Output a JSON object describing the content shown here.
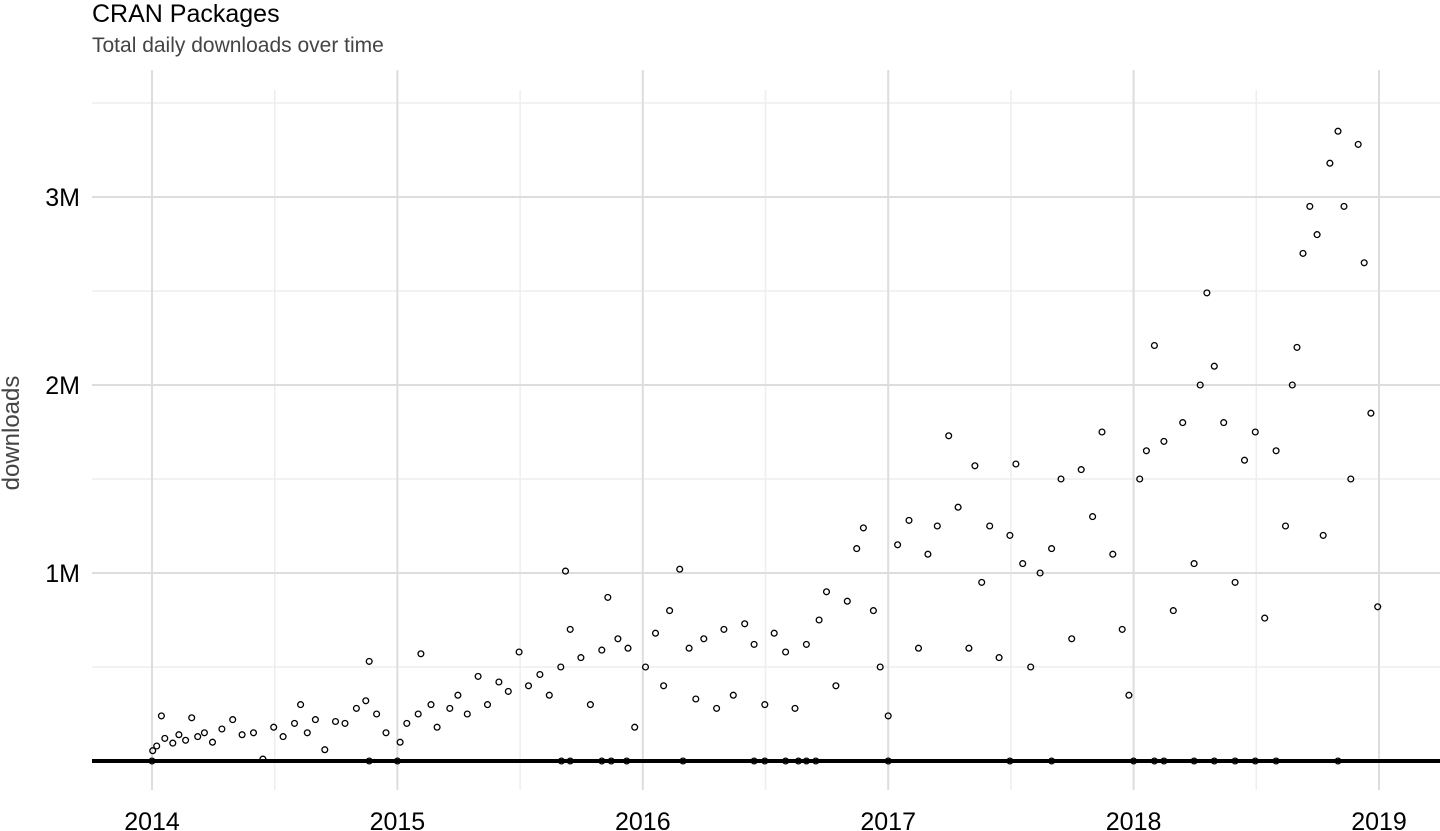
{
  "chart_data": {
    "type": "scatter",
    "title": "CRAN Packages",
    "subtitle": "Total daily downloads over time",
    "xlabel": "",
    "ylabel": "downloads",
    "x_ticks": [
      "2014",
      "2015",
      "2016",
      "2017",
      "2018",
      "2019"
    ],
    "y_ticks": [
      "1M",
      "2M",
      "3M"
    ],
    "xlim": [
      "2013-09-15",
      "2019-04-01"
    ],
    "ylim": [
      -150000,
      3500000
    ],
    "grid": true,
    "point_style": "hollow-circle",
    "colors": {
      "point": "#000000",
      "grid_major": "#dddddd",
      "grid_minor": "#eeeeee",
      "baseline": "#000000"
    },
    "zero_days": [
      "2014-01-01",
      "2014-11-20",
      "2015-01-01",
      "2015-09-02",
      "2015-09-15",
      "2015-11-01",
      "2015-11-15",
      "2015-12-08",
      "2016-03-01",
      "2016-06-15",
      "2016-07-01",
      "2016-08-01",
      "2016-08-20",
      "2016-09-01",
      "2016-09-15",
      "2017-01-01",
      "2017-07-01",
      "2017-09-01",
      "2018-01-01",
      "2018-02-01",
      "2018-02-15",
      "2018-04-01",
      "2018-05-01",
      "2018-06-01",
      "2018-07-01",
      "2018-08-01",
      "2018-11-01"
    ],
    "series": [
      {
        "name": "downloads",
        "points": [
          [
            "2014-01-02",
            55000
          ],
          [
            "2014-01-08",
            80000
          ],
          [
            "2014-01-15",
            240000
          ],
          [
            "2014-01-20",
            120000
          ],
          [
            "2014-02-01",
            95000
          ],
          [
            "2014-02-10",
            140000
          ],
          [
            "2014-02-20",
            110000
          ],
          [
            "2014-03-01",
            230000
          ],
          [
            "2014-03-10",
            130000
          ],
          [
            "2014-03-20",
            150000
          ],
          [
            "2014-04-01",
            100000
          ],
          [
            "2014-04-15",
            170000
          ],
          [
            "2014-05-01",
            220000
          ],
          [
            "2014-05-15",
            140000
          ],
          [
            "2014-06-01",
            150000
          ],
          [
            "2014-06-15",
            10000
          ],
          [
            "2014-07-01",
            180000
          ],
          [
            "2014-07-15",
            130000
          ],
          [
            "2014-08-01",
            200000
          ],
          [
            "2014-08-10",
            300000
          ],
          [
            "2014-08-20",
            150000
          ],
          [
            "2014-09-01",
            220000
          ],
          [
            "2014-09-15",
            60000
          ],
          [
            "2014-10-01",
            210000
          ],
          [
            "2014-10-15",
            200000
          ],
          [
            "2014-11-01",
            280000
          ],
          [
            "2014-11-15",
            320000
          ],
          [
            "2014-11-20",
            530000
          ],
          [
            "2014-12-01",
            250000
          ],
          [
            "2014-12-15",
            150000
          ],
          [
            "2015-01-05",
            100000
          ],
          [
            "2015-01-15",
            200000
          ],
          [
            "2015-02-01",
            250000
          ],
          [
            "2015-02-05",
            570000
          ],
          [
            "2015-02-20",
            300000
          ],
          [
            "2015-03-01",
            180000
          ],
          [
            "2015-03-20",
            280000
          ],
          [
            "2015-04-01",
            350000
          ],
          [
            "2015-04-15",
            250000
          ],
          [
            "2015-05-01",
            450000
          ],
          [
            "2015-05-15",
            300000
          ],
          [
            "2015-06-01",
            420000
          ],
          [
            "2015-06-15",
            370000
          ],
          [
            "2015-07-01",
            580000
          ],
          [
            "2015-07-15",
            400000
          ],
          [
            "2015-08-01",
            460000
          ],
          [
            "2015-08-15",
            350000
          ],
          [
            "2015-09-01",
            500000
          ],
          [
            "2015-09-08",
            1010000
          ],
          [
            "2015-09-15",
            700000
          ],
          [
            "2015-10-01",
            550000
          ],
          [
            "2015-10-15",
            300000
          ],
          [
            "2015-11-01",
            590000
          ],
          [
            "2015-11-10",
            870000
          ],
          [
            "2015-11-25",
            650000
          ],
          [
            "2015-12-10",
            600000
          ],
          [
            "2015-12-20",
            180000
          ],
          [
            "2016-01-05",
            500000
          ],
          [
            "2016-01-20",
            680000
          ],
          [
            "2016-02-01",
            400000
          ],
          [
            "2016-02-10",
            800000
          ],
          [
            "2016-02-25",
            1020000
          ],
          [
            "2016-03-10",
            600000
          ],
          [
            "2016-03-20",
            330000
          ],
          [
            "2016-04-01",
            650000
          ],
          [
            "2016-04-20",
            280000
          ],
          [
            "2016-05-01",
            700000
          ],
          [
            "2016-05-15",
            350000
          ],
          [
            "2016-06-01",
            730000
          ],
          [
            "2016-06-15",
            620000
          ],
          [
            "2016-07-01",
            300000
          ],
          [
            "2016-07-15",
            680000
          ],
          [
            "2016-08-01",
            580000
          ],
          [
            "2016-08-15",
            280000
          ],
          [
            "2016-09-01",
            620000
          ],
          [
            "2016-09-20",
            750000
          ],
          [
            "2016-10-01",
            900000
          ],
          [
            "2016-10-15",
            400000
          ],
          [
            "2016-11-01",
            850000
          ],
          [
            "2016-11-15",
            1130000
          ],
          [
            "2016-11-25",
            1240000
          ],
          [
            "2016-12-10",
            800000
          ],
          [
            "2016-12-20",
            500000
          ],
          [
            "2017-01-01",
            240000
          ],
          [
            "2017-01-15",
            1150000
          ],
          [
            "2017-02-01",
            1280000
          ],
          [
            "2017-02-15",
            600000
          ],
          [
            "2017-03-01",
            1100000
          ],
          [
            "2017-03-15",
            1250000
          ],
          [
            "2017-04-01",
            1730000
          ],
          [
            "2017-04-15",
            1350000
          ],
          [
            "2017-05-01",
            600000
          ],
          [
            "2017-05-10",
            1570000
          ],
          [
            "2017-05-20",
            950000
          ],
          [
            "2017-06-01",
            1250000
          ],
          [
            "2017-06-15",
            550000
          ],
          [
            "2017-07-01",
            1200000
          ],
          [
            "2017-07-10",
            1580000
          ],
          [
            "2017-07-20",
            1050000
          ],
          [
            "2017-08-01",
            500000
          ],
          [
            "2017-08-15",
            1000000
          ],
          [
            "2017-09-01",
            1130000
          ],
          [
            "2017-09-15",
            1500000
          ],
          [
            "2017-10-01",
            650000
          ],
          [
            "2017-10-15",
            1550000
          ],
          [
            "2017-11-01",
            1300000
          ],
          [
            "2017-11-15",
            1750000
          ],
          [
            "2017-12-01",
            1100000
          ],
          [
            "2017-12-15",
            700000
          ],
          [
            "2017-12-25",
            350000
          ],
          [
            "2018-01-10",
            1500000
          ],
          [
            "2018-01-20",
            1650000
          ],
          [
            "2018-02-01",
            2210000
          ],
          [
            "2018-02-15",
            1700000
          ],
          [
            "2018-03-01",
            800000
          ],
          [
            "2018-03-15",
            1800000
          ],
          [
            "2018-04-01",
            1050000
          ],
          [
            "2018-04-10",
            2000000
          ],
          [
            "2018-04-20",
            2490000
          ],
          [
            "2018-05-01",
            2100000
          ],
          [
            "2018-05-15",
            1800000
          ],
          [
            "2018-06-01",
            950000
          ],
          [
            "2018-06-15",
            1600000
          ],
          [
            "2018-07-01",
            1750000
          ],
          [
            "2018-07-15",
            760000
          ],
          [
            "2018-08-01",
            1650000
          ],
          [
            "2018-08-15",
            1250000
          ],
          [
            "2018-08-25",
            2000000
          ],
          [
            "2018-09-01",
            2200000
          ],
          [
            "2018-09-10",
            2700000
          ],
          [
            "2018-09-20",
            2950000
          ],
          [
            "2018-10-01",
            2800000
          ],
          [
            "2018-10-10",
            1200000
          ],
          [
            "2018-10-20",
            3180000
          ],
          [
            "2018-11-01",
            3350000
          ],
          [
            "2018-11-10",
            2950000
          ],
          [
            "2018-11-20",
            1500000
          ],
          [
            "2018-12-01",
            3280000
          ],
          [
            "2018-12-10",
            2650000
          ],
          [
            "2018-12-20",
            1850000
          ],
          [
            "2018-12-30",
            820000
          ]
        ]
      }
    ]
  }
}
